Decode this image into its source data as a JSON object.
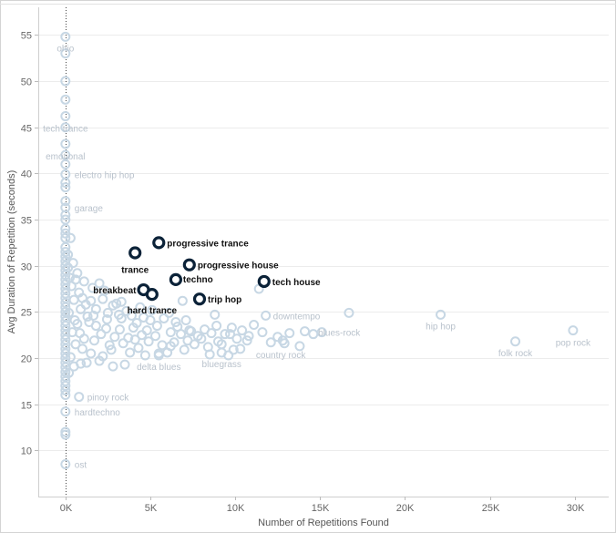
{
  "chart_data": {
    "type": "scatter",
    "xlabel": "Number of Repetitions Found",
    "ylabel": "Avg Duration of Repetition (seconds)",
    "xlim": [
      -1600,
      32000
    ],
    "ylim": [
      5,
      58
    ],
    "x_ticks": [
      0,
      5000,
      10000,
      15000,
      20000,
      25000,
      30000
    ],
    "x_tick_labels": [
      "0K",
      "5K",
      "10K",
      "15K",
      "20K",
      "25K",
      "30K"
    ],
    "y_ticks": [
      10,
      15,
      20,
      25,
      30,
      35,
      40,
      45,
      50,
      55
    ],
    "reference_line_x": 0,
    "grid": "horizontal",
    "colors": {
      "faded_marker": "#c7d7e4",
      "highlight_marker": "#1f4e79",
      "highlight_ring": "#0b2238",
      "faded_label": "#b9c2cc",
      "highlight_label": "#111111",
      "gridline": "#ececec"
    },
    "labeled_points": [
      {
        "label": "ohio",
        "x": 0,
        "y": 54.8,
        "highlight": false
      },
      {
        "label": "tech trance",
        "x": 0,
        "y": 46.2,
        "highlight": false
      },
      {
        "label": "emotional",
        "x": 0,
        "y": 43.2,
        "highlight": false
      },
      {
        "label": "electro hip hop",
        "x": 0,
        "y": 39.9,
        "highlight": false
      },
      {
        "label": "garage",
        "x": 0,
        "y": 36.3,
        "highlight": false
      },
      {
        "label": "pinoy rock",
        "x": 800,
        "y": 15.8,
        "highlight": false
      },
      {
        "label": "hardtechno",
        "x": 0,
        "y": 14.2,
        "highlight": false
      },
      {
        "label": "ost",
        "x": 0,
        "y": 8.5,
        "highlight": false
      },
      {
        "label": "delta blues",
        "x": 5500,
        "y": 20.3,
        "highlight": false
      },
      {
        "label": "bluegrass",
        "x": 9200,
        "y": 20.6,
        "highlight": false
      },
      {
        "label": "country rock",
        "x": 12900,
        "y": 21.6,
        "highlight": false
      },
      {
        "label": "downtempo",
        "x": 11800,
        "y": 24.6,
        "highlight": false
      },
      {
        "label": "blues-rock",
        "x": 15100,
        "y": 22.8,
        "highlight": false
      },
      {
        "label": "hip hop",
        "x": 22100,
        "y": 24.7,
        "highlight": false
      },
      {
        "label": "folk rock",
        "x": 26500,
        "y": 21.8,
        "highlight": false
      },
      {
        "label": "pop rock",
        "x": 29900,
        "y": 23.0,
        "highlight": false
      },
      {
        "label": "progressive trance",
        "x": 5500,
        "y": 32.5,
        "highlight": true
      },
      {
        "label": "trance",
        "x": 4100,
        "y": 31.4,
        "highlight": true
      },
      {
        "label": "progressive house",
        "x": 7300,
        "y": 30.1,
        "highlight": true
      },
      {
        "label": "techno",
        "x": 6500,
        "y": 28.5,
        "highlight": true
      },
      {
        "label": "tech house",
        "x": 11700,
        "y": 28.3,
        "highlight": true
      },
      {
        "label": "breakbeat",
        "x": 4600,
        "y": 27.4,
        "highlight": true
      },
      {
        "label": "hard trance",
        "x": 5100,
        "y": 26.9,
        "highlight": true
      },
      {
        "label": "trip hop",
        "x": 7900,
        "y": 26.4,
        "highlight": true
      }
    ],
    "unlabeled_points": [
      [
        11400,
        27.5
      ],
      [
        6900,
        26.2
      ],
      [
        0,
        53.0
      ],
      [
        0,
        50.0
      ],
      [
        0,
        48.0
      ],
      [
        0,
        45.0
      ],
      [
        0,
        42.0
      ],
      [
        0,
        41.0
      ],
      [
        0,
        39.0
      ],
      [
        0,
        38.5
      ],
      [
        0,
        37.0
      ],
      [
        0,
        35.5
      ],
      [
        0,
        35.0
      ],
      [
        0,
        34.0
      ],
      [
        0,
        33.5
      ],
      [
        0,
        33.0
      ],
      [
        0,
        32.0
      ],
      [
        0,
        31.5
      ],
      [
        0,
        31.0
      ],
      [
        0,
        30.5
      ],
      [
        0,
        30.0
      ],
      [
        0,
        29.5
      ],
      [
        0,
        29.0
      ],
      [
        0,
        28.5
      ],
      [
        0,
        28.0
      ],
      [
        0,
        27.5
      ],
      [
        0,
        27.0
      ],
      [
        0,
        26.5
      ],
      [
        0,
        26.0
      ],
      [
        0,
        25.5
      ],
      [
        0,
        25.0
      ],
      [
        0,
        24.5
      ],
      [
        0,
        24.0
      ],
      [
        0,
        23.5
      ],
      [
        0,
        23.0
      ],
      [
        0,
        22.5
      ],
      [
        0,
        22.0
      ],
      [
        0,
        21.5
      ],
      [
        0,
        21.0
      ],
      [
        0,
        20.5
      ],
      [
        0,
        20.0
      ],
      [
        0,
        19.5
      ],
      [
        0,
        19.0
      ],
      [
        0,
        18.5
      ],
      [
        0,
        18.0
      ],
      [
        0,
        17.5
      ],
      [
        0,
        17.0
      ],
      [
        0,
        16.5
      ],
      [
        0,
        16.0
      ],
      [
        0,
        12.0
      ],
      [
        0,
        11.7
      ],
      [
        300,
        33.0
      ],
      [
        150,
        31.2
      ],
      [
        150,
        29.8
      ],
      [
        250,
        28.7
      ],
      [
        350,
        27.8
      ],
      [
        600,
        28.5
      ],
      [
        800,
        27.1
      ],
      [
        1000,
        26.5
      ],
      [
        1200,
        25.8
      ],
      [
        1500,
        26.2
      ],
      [
        1800,
        25.3
      ],
      [
        2000,
        28.1
      ],
      [
        2200,
        26.4
      ],
      [
        2500,
        24.9
      ],
      [
        2800,
        25.7
      ],
      [
        3000,
        25.9
      ],
      [
        3300,
        24.3
      ],
      [
        3600,
        25.1
      ],
      [
        3900,
        24.6
      ],
      [
        4200,
        23.8
      ],
      [
        4600,
        24.4
      ],
      [
        5000,
        24.1
      ],
      [
        5400,
        23.5
      ],
      [
        5800,
        24.3
      ],
      [
        6200,
        22.8
      ],
      [
        6600,
        23.4
      ],
      [
        7100,
        24.1
      ],
      [
        7400,
        22.9
      ],
      [
        7800,
        22.4
      ],
      [
        8200,
        23.1
      ],
      [
        8600,
        22.7
      ],
      [
        8800,
        24.7
      ],
      [
        9000,
        21.8
      ],
      [
        9400,
        22.6
      ],
      [
        9800,
        23.3
      ],
      [
        10100,
        22.1
      ],
      [
        10400,
        23.0
      ],
      [
        10700,
        21.9
      ],
      [
        11100,
        23.6
      ],
      [
        11600,
        22.8
      ],
      [
        12100,
        21.7
      ],
      [
        12500,
        22.3
      ],
      [
        13200,
        22.7
      ],
      [
        14100,
        22.9
      ],
      [
        14600,
        22.6
      ],
      [
        16700,
        24.9
      ],
      [
        13800,
        21.3
      ],
      [
        12800,
        21.9
      ],
      [
        10300,
        21.0
      ],
      [
        9600,
        20.3
      ],
      [
        8400,
        21.2
      ],
      [
        7200,
        21.9
      ],
      [
        6000,
        20.6
      ],
      [
        4300,
        21.1
      ],
      [
        3400,
        21.6
      ],
      [
        2700,
        20.9
      ],
      [
        2000,
        19.7
      ],
      [
        1500,
        20.5
      ],
      [
        900,
        19.4
      ],
      [
        600,
        21.5
      ],
      [
        400,
        22.8
      ],
      [
        200,
        24.9
      ],
      [
        700,
        23.7
      ],
      [
        1100,
        22.1
      ],
      [
        1400,
        23.9
      ],
      [
        1700,
        21.9
      ],
      [
        2100,
        22.6
      ],
      [
        2400,
        23.2
      ],
      [
        2900,
        22.3
      ],
      [
        3200,
        23.1
      ],
      [
        3700,
        22.2
      ],
      [
        4000,
        23.3
      ],
      [
        4500,
        22.5
      ],
      [
        4900,
        21.8
      ],
      [
        5300,
        22.4
      ],
      [
        5700,
        21.4
      ],
      [
        6400,
        21.7
      ],
      [
        6800,
        22.6
      ],
      [
        7600,
        21.5
      ],
      [
        8000,
        22.1
      ],
      [
        1300,
        24.5
      ],
      [
        900,
        25.3
      ],
      [
        500,
        26.3
      ],
      [
        300,
        20.1
      ],
      [
        200,
        18.4
      ],
      [
        500,
        19.1
      ],
      [
        1000,
        21.0
      ],
      [
        1800,
        23.5
      ],
      [
        2600,
        21.4
      ],
      [
        3500,
        19.3
      ],
      [
        4700,
        20.3
      ],
      [
        5500,
        20.5
      ],
      [
        6200,
        21.3
      ],
      [
        7000,
        20.9
      ],
      [
        8500,
        20.4
      ],
      [
        9200,
        21.5
      ],
      [
        10800,
        22.4
      ],
      [
        9900,
        20.9
      ],
      [
        5100,
        25.2
      ],
      [
        6100,
        24.9
      ],
      [
        4400,
        25.5
      ],
      [
        3300,
        26.1
      ],
      [
        2300,
        27.3
      ],
      [
        1600,
        27.6
      ],
      [
        1100,
        28.3
      ],
      [
        700,
        29.2
      ],
      [
        450,
        30.3
      ],
      [
        6500,
        23.9
      ],
      [
        7300,
        23.0
      ],
      [
        8900,
        23.5
      ],
      [
        9700,
        22.6
      ],
      [
        1250,
        19.5
      ],
      [
        2200,
        20.2
      ],
      [
        2800,
        19.1
      ],
      [
        3800,
        20.6
      ],
      [
        4100,
        22.0
      ],
      [
        4800,
        23.0
      ],
      [
        550,
        24.1
      ],
      [
        850,
        22.7
      ],
      [
        1650,
        24.6
      ],
      [
        2450,
        24.2
      ],
      [
        3150,
        24.7
      ]
    ]
  }
}
